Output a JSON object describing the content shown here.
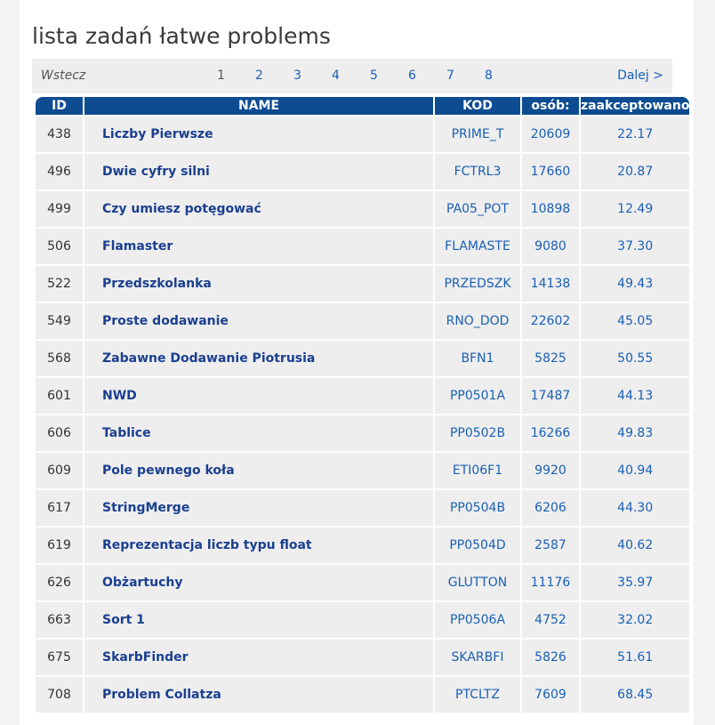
{
  "page_title": "lista zadań łatwe problems",
  "pager": {
    "prev_label": "Wstecz",
    "pages": [
      "1",
      "2",
      "3",
      "4",
      "5",
      "6",
      "7",
      "8"
    ],
    "current": "1",
    "next_label": "Dalej >"
  },
  "table": {
    "headers": {
      "id": "ID",
      "name": "NAME",
      "code": "KOD",
      "users": "osób:",
      "accepted": "zaakceptowano"
    },
    "rows": [
      {
        "id": "438",
        "name": "Liczby Pierwsze",
        "code": "PRIME_T",
        "users": "20609",
        "accepted": "22.17"
      },
      {
        "id": "496",
        "name": "Dwie cyfry silni",
        "code": "FCTRL3",
        "users": "17660",
        "accepted": "20.87"
      },
      {
        "id": "499",
        "name": "Czy umiesz potęgować",
        "code": "PA05_POT",
        "users": "10898",
        "accepted": "12.49"
      },
      {
        "id": "506",
        "name": "Flamaster",
        "code": "FLAMASTE",
        "users": "9080",
        "accepted": "37.30"
      },
      {
        "id": "522",
        "name": "Przedszkolanka",
        "code": "PRZEDSZK",
        "users": "14138",
        "accepted": "49.43"
      },
      {
        "id": "549",
        "name": "Proste dodawanie",
        "code": "RNO_DOD",
        "users": "22602",
        "accepted": "45.05"
      },
      {
        "id": "568",
        "name": "Zabawne Dodawanie Piotrusia",
        "code": "BFN1",
        "users": "5825",
        "accepted": "50.55"
      },
      {
        "id": "601",
        "name": "NWD",
        "code": "PP0501A",
        "users": "17487",
        "accepted": "44.13"
      },
      {
        "id": "606",
        "name": "Tablice",
        "code": "PP0502B",
        "users": "16266",
        "accepted": "49.83"
      },
      {
        "id": "609",
        "name": "Pole pewnego koła",
        "code": "ETI06F1",
        "users": "9920",
        "accepted": "40.94"
      },
      {
        "id": "617",
        "name": "StringMerge",
        "code": "PP0504B",
        "users": "6206",
        "accepted": "44.30"
      },
      {
        "id": "619",
        "name": "Reprezentacja liczb typu float",
        "code": "PP0504D",
        "users": "2587",
        "accepted": "40.62"
      },
      {
        "id": "626",
        "name": "Obżartuchy",
        "code": "GLUTTON",
        "users": "11176",
        "accepted": "35.97"
      },
      {
        "id": "663",
        "name": "Sort 1",
        "code": "PP0506A",
        "users": "4752",
        "accepted": "32.02"
      },
      {
        "id": "675",
        "name": "SkarbFinder",
        "code": "SKARBFI",
        "users": "5826",
        "accepted": "51.61"
      },
      {
        "id": "708",
        "name": "Problem Collatza",
        "code": "PTCLTZ",
        "users": "7609",
        "accepted": "68.45"
      }
    ]
  }
}
